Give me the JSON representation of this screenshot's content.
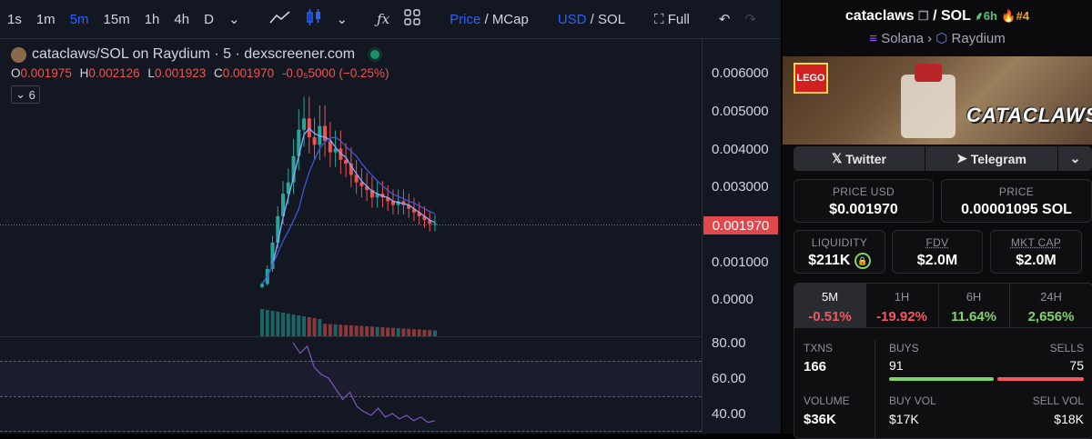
{
  "toolbar": {
    "intervals": [
      "1s",
      "1m",
      "5m",
      "15m",
      "1h",
      "4h",
      "D"
    ],
    "active_interval": "5m",
    "price_label": "Price",
    "mcap_label": "MCap",
    "usd_label": "USD",
    "sol_label": "SOL",
    "full_label": "Full"
  },
  "chart": {
    "title": "cataclaws/SOL on Raydium · 5 · dexscreener.com",
    "ohlc": {
      "o": "0.001975",
      "h": "0.002126",
      "l": "0.001923",
      "c": "0.001970",
      "chg": "-0.0₅5000 (−0.25%)"
    },
    "indicator_count": "6",
    "price_axis": [
      "0.006000",
      "0.005000",
      "0.004000",
      "0.003000",
      "0.001000",
      "0.0000"
    ],
    "current_price": "0.001970",
    "rsi_axis": [
      "80.00",
      "60.00",
      "40.00"
    ]
  },
  "chart_data": {
    "type": "line",
    "title": "",
    "ylim": [
      0,
      0.0062
    ],
    "series": [
      {
        "values": [
          0.0004,
          0.0008,
          0.0015,
          0.0022,
          0.0028,
          0.0031,
          0.0038,
          0.0045,
          0.0048,
          0.0043,
          0.0041,
          0.0046,
          0.0042,
          0.0039,
          0.004,
          0.0037,
          0.0036,
          0.0033,
          0.0031,
          0.003,
          0.0029,
          0.0027,
          0.0028,
          0.0027,
          0.0026,
          0.0025,
          0.0026,
          0.0025,
          0.0024,
          0.0023,
          0.0022,
          0.0021,
          0.002,
          0.002
        ]
      }
    ]
  },
  "token": {
    "name": "cataclaws",
    "quote": "SOL",
    "age": "6h",
    "rank": "#4",
    "chain": "Solana",
    "dex": "Raydium",
    "banner_text": "CATACLAWS",
    "banner_brand": "LEGO"
  },
  "social": {
    "twitter": "Twitter",
    "telegram": "Telegram"
  },
  "prices": {
    "usd_label": "PRICE USD",
    "usd": "$0.001970",
    "sol_label": "PRICE",
    "sol": "0.00001095 SOL"
  },
  "metrics": {
    "liq_label": "LIQUIDITY",
    "liq": "$211K",
    "fdv_label": "FDV",
    "fdv": "$2.0M",
    "mcap_label": "MKT CAP",
    "mcap": "$2.0M"
  },
  "timeframes": [
    {
      "label": "5M",
      "change": "-0.51%",
      "dir": "down"
    },
    {
      "label": "1H",
      "change": "-19.92%",
      "dir": "down"
    },
    {
      "label": "6H",
      "change": "11.64%",
      "dir": "up"
    },
    {
      "label": "24H",
      "change": "2,656%",
      "dir": "up"
    }
  ],
  "stats": {
    "txns_label": "TXNS",
    "txns": "166",
    "buys_label": "BUYS",
    "buys": "91",
    "sells_label": "SELLS",
    "sells": "75",
    "buy_ratio": 0.548,
    "volume_label": "VOLUME",
    "volume": "$36K",
    "buyvol_label": "BUY VOL",
    "buyvol": "$17K",
    "sellvol_label": "SELL VOL",
    "sellvol": "$18K"
  }
}
